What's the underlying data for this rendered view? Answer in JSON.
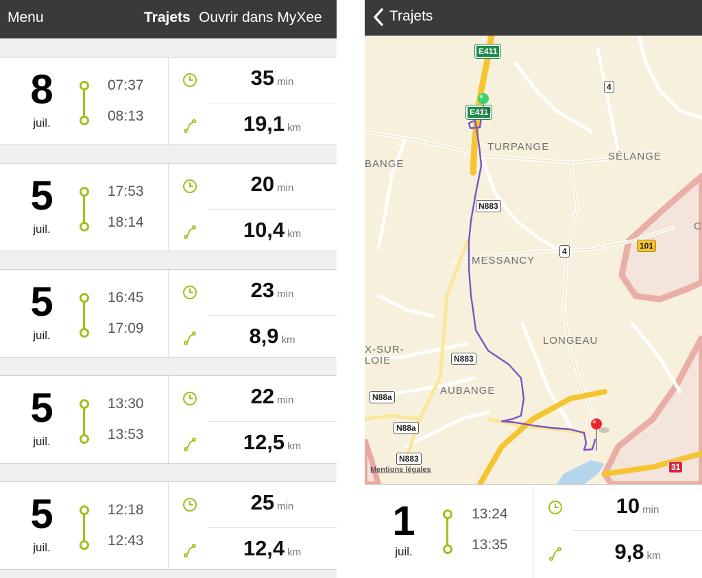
{
  "left_screen": {
    "nav": {
      "menu_label": "Menu",
      "title": "Trajets",
      "open_label": "Ouvrir dans MyXee"
    },
    "trips": [
      {
        "day": "8",
        "month": "juil.",
        "start": "07:37",
        "end": "08:13",
        "duration": "35",
        "duration_unit": "min",
        "distance": "19,1",
        "distance_unit": "km"
      },
      {
        "day": "5",
        "month": "juil.",
        "start": "17:53",
        "end": "18:14",
        "duration": "20",
        "duration_unit": "min",
        "distance": "10,4",
        "distance_unit": "km"
      },
      {
        "day": "5",
        "month": "juil.",
        "start": "16:45",
        "end": "17:09",
        "duration": "23",
        "duration_unit": "min",
        "distance": "8,9",
        "distance_unit": "km"
      },
      {
        "day": "5",
        "month": "juil.",
        "start": "13:30",
        "end": "13:53",
        "duration": "22",
        "duration_unit": "min",
        "distance": "12,5",
        "distance_unit": "km"
      },
      {
        "day": "5",
        "month": "juil.",
        "start": "12:18",
        "end": "12:43",
        "duration": "25",
        "duration_unit": "min",
        "distance": "12,4",
        "distance_unit": "km"
      }
    ]
  },
  "right_screen": {
    "nav": {
      "back_label": "Trajets"
    },
    "map": {
      "places": [
        "TURPANGE",
        "SÉLANGE",
        "BANGE",
        "MESSANCY",
        "LONGEAU",
        "AUBANGE",
        "X-SUR-",
        "LOIE",
        "C"
      ],
      "roads": [
        "E411",
        "E411",
        "4",
        "N883",
        "4",
        "101",
        "N883",
        "N88a",
        "N88a",
        "N883",
        "31"
      ],
      "legal_label": "Mentions légales"
    },
    "trip": {
      "day": "1",
      "month": "juil.",
      "start": "13:24",
      "end": "13:35",
      "duration": "10",
      "duration_unit": "min",
      "distance": "9,8",
      "distance_unit": "km"
    }
  },
  "colors": {
    "accent_green": "#9bc21b",
    "navbar": "#3a3a3a",
    "route_purple": "#7a52c7",
    "start_pin": "#3ecf6f",
    "end_pin": "#e8242c"
  },
  "icons": [
    "clock-icon",
    "route-icon",
    "chevron-left-icon",
    "start-pin-icon",
    "end-pin-icon"
  ]
}
